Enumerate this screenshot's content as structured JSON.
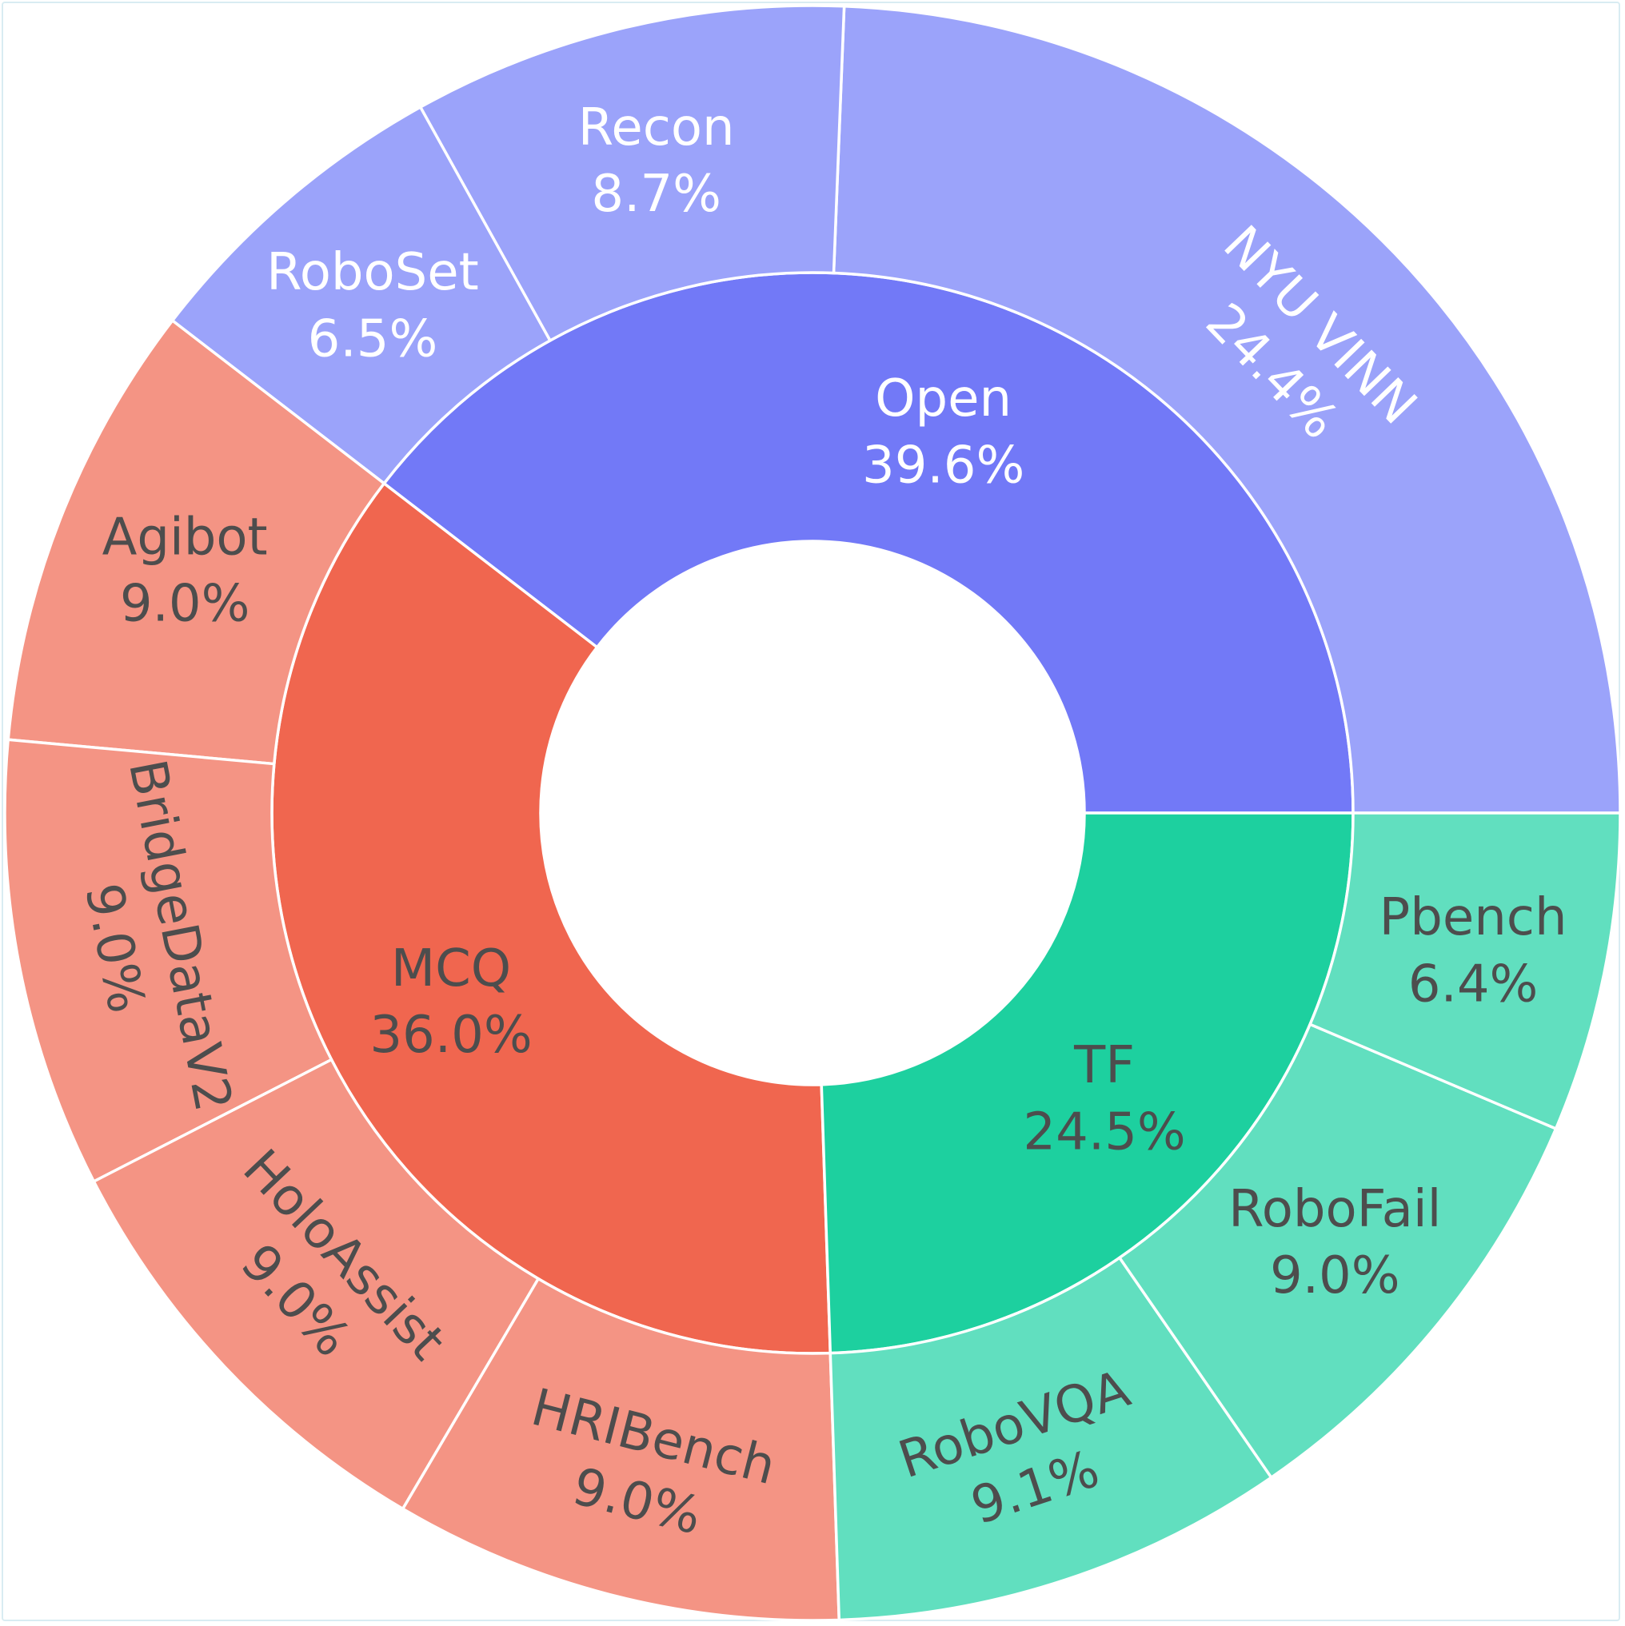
{
  "chart_data": {
    "type": "sunburst",
    "colors": {
      "Open": {
        "inner": "#7279F7",
        "outer": "#9BA3FA",
        "text": "#ffffff"
      },
      "MCQ": {
        "inner": "#F0664F",
        "outer": "#F49484",
        "text": "#4d4d4d"
      },
      "TF": {
        "inner": "#1DD09F",
        "outer": "#61DFBF",
        "text": "#4d4d4d"
      }
    },
    "groups": [
      {
        "name": "Open",
        "percent_label": "39.6%",
        "value": 39.6,
        "children": [
          {
            "name": "NYU VINN",
            "percent_label": "24.4%",
            "value": 24.4
          },
          {
            "name": "Recon",
            "percent_label": "8.7%",
            "value": 8.7
          },
          {
            "name": "RoboSet",
            "percent_label": "6.5%",
            "value": 6.5
          }
        ]
      },
      {
        "name": "MCQ",
        "percent_label": "36.0%",
        "value": 36.0,
        "children": [
          {
            "name": "Agibot",
            "percent_label": "9.0%",
            "value": 9.0
          },
          {
            "name": "BridgeDataV2",
            "percent_label": "9.0%",
            "value": 9.0
          },
          {
            "name": "HoloAssist",
            "percent_label": "9.0%",
            "value": 9.0
          },
          {
            "name": "HRIBench",
            "percent_label": "9.0%",
            "value": 9.0
          }
        ]
      },
      {
        "name": "TF",
        "percent_label": "24.5%",
        "value": 24.5,
        "children": [
          {
            "name": "RoboVQA",
            "percent_label": "9.1%",
            "value": 9.1
          },
          {
            "name": "RoboFail",
            "percent_label": "9.0%",
            "value": 9.0
          },
          {
            "name": "Pbench",
            "percent_label": "6.4%",
            "value": 6.4
          }
        ]
      }
    ]
  }
}
